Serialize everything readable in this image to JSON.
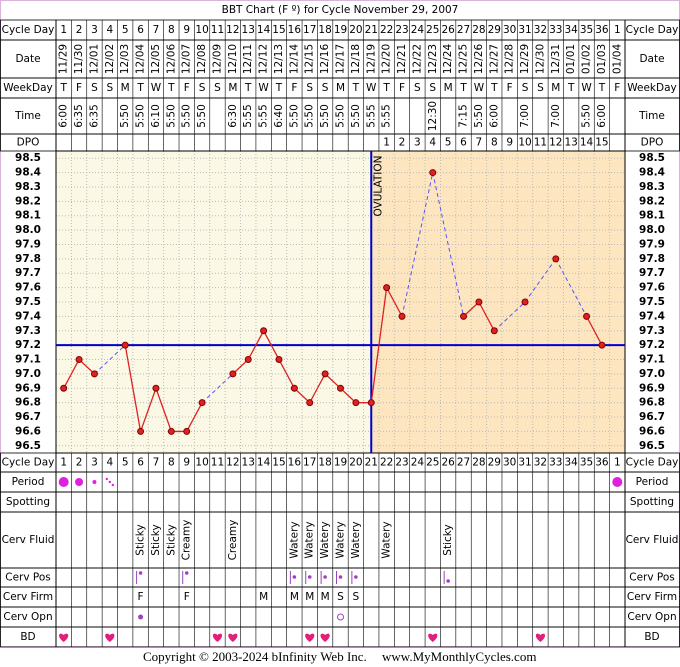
{
  "title": "BBT Chart (F º) for Cycle November 29, 2007",
  "rows_top": [
    "Cycle Day",
    "Date",
    "WeekDay",
    "Time",
    "DPO"
  ],
  "rows_bottom": [
    "Cycle Day",
    "Period",
    "Spotting",
    "Cerv Fluid",
    "Cerv Pos",
    "Cerv Firm",
    "Cerv Opn",
    "BD"
  ],
  "ovulation_label": "OVULATION",
  "dates": [
    "11/29",
    "11/30",
    "12/01",
    "12/02",
    "12/03",
    "12/04",
    "12/05",
    "12/06",
    "12/07",
    "12/08",
    "12/09",
    "12/10",
    "12/11",
    "12/12",
    "12/13",
    "12/14",
    "12/15",
    "12/16",
    "12/17",
    "12/18",
    "12/19",
    "12/20",
    "12/21",
    "12/22",
    "12/23",
    "12/24",
    "12/25",
    "12/26",
    "12/27",
    "12/28",
    "12/29",
    "12/30",
    "12/31",
    "01/01",
    "01/02",
    "01/03",
    "01/04"
  ],
  "weekdays": [
    "T",
    "F",
    "S",
    "S",
    "M",
    "T",
    "W",
    "T",
    "F",
    "S",
    "S",
    "M",
    "T",
    "W",
    "T",
    "F",
    "S",
    "S",
    "M",
    "T",
    "W",
    "T",
    "F",
    "S",
    "S",
    "M",
    "T",
    "W",
    "T",
    "F",
    "S",
    "S",
    "M",
    "T",
    "W",
    "T",
    "F"
  ],
  "times": [
    "6:00",
    "6:35",
    "6:35",
    null,
    "5:50",
    "5:50",
    "6:10",
    "5:50",
    "5:50",
    "5:50",
    null,
    "6:30",
    "5:55",
    "5:55",
    "6:40",
    "5:50",
    "5:50",
    "5:50",
    "5:50",
    "5:50",
    "5:55",
    "5:55",
    null,
    null,
    "12:30",
    null,
    "7:15",
    "5:50",
    "6:00",
    null,
    "7:00",
    null,
    "7:00",
    null,
    "5:50",
    "6:00",
    null
  ],
  "dpo": [
    null,
    null,
    null,
    null,
    null,
    null,
    null,
    null,
    null,
    null,
    null,
    null,
    null,
    null,
    null,
    null,
    null,
    null,
    null,
    null,
    null,
    1,
    2,
    3,
    4,
    5,
    6,
    7,
    8,
    9,
    10,
    11,
    12,
    13,
    14,
    15,
    null
  ],
  "cervical_fluid": [
    null,
    null,
    null,
    null,
    null,
    "Sticky",
    "Sticky",
    "Sticky",
    "Creamy",
    null,
    null,
    "Creamy",
    null,
    null,
    null,
    "Watery",
    "Watery",
    "Watery",
    "Watery",
    "Watery",
    null,
    "Watery",
    null,
    null,
    null,
    "Sticky",
    null,
    null,
    null,
    null,
    null,
    null,
    null,
    null,
    null,
    null,
    null
  ],
  "cervical_firmness": [
    null,
    null,
    null,
    null,
    null,
    "F",
    null,
    null,
    "F",
    null,
    null,
    null,
    null,
    "M",
    null,
    "M",
    "M",
    "M",
    "S",
    "S",
    null,
    null,
    null,
    null,
    null,
    null,
    null,
    null,
    null,
    null,
    null,
    null,
    null,
    null,
    null,
    null,
    null
  ],
  "footer": {
    "copyright": "Copyright © 2003-2024 bInfinity Web Inc.",
    "site": "www.MyMonthlyCycles.com"
  },
  "chart_data": {
    "type": "line",
    "categories": [
      1,
      2,
      3,
      4,
      5,
      6,
      7,
      8,
      9,
      10,
      11,
      12,
      13,
      14,
      15,
      16,
      17,
      18,
      19,
      20,
      21,
      22,
      23,
      24,
      25,
      26,
      27,
      28,
      29,
      30,
      31,
      32,
      33,
      34,
      35,
      36,
      1
    ],
    "values": [
      96.9,
      97.1,
      97.0,
      null,
      97.2,
      96.6,
      96.9,
      96.6,
      96.6,
      96.8,
      null,
      97.0,
      97.1,
      97.3,
      97.1,
      96.9,
      96.8,
      97.0,
      96.9,
      96.8,
      96.8,
      97.6,
      97.4,
      null,
      98.4,
      null,
      97.4,
      97.5,
      97.3,
      null,
      97.5,
      null,
      97.8,
      null,
      97.4,
      97.2,
      null
    ],
    "color": "#dd2222",
    "ylim": [
      96.45,
      98.55
    ],
    "yticks": [
      98.5,
      98.4,
      98.3,
      98.2,
      98.1,
      {
        "value": 98,
        "label": "98.0"
      },
      97.9,
      97.8,
      97.7,
      97.6,
      97.5,
      97.4,
      97.3,
      97.2,
      97.1,
      {
        "value": 97,
        "label": "97.0"
      },
      96.9,
      96.8,
      96.7,
      96.6,
      96.5
    ],
    "cover_line": 97.2,
    "ovulation_day": 21,
    "grid": true
  }
}
